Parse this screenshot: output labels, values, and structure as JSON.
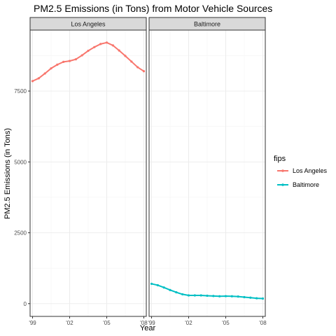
{
  "chart_data": {
    "type": "line",
    "title": "PM2.5 Emissions (in Tons) from Motor Vehicle Sources",
    "xlabel": "Year",
    "ylabel": "PM2.5 Emissions (in Tons)",
    "x_ticks": [
      {
        "value": 1999,
        "label": "'99"
      },
      {
        "value": 2002,
        "label": "'02"
      },
      {
        "value": 2005,
        "label": "'05"
      },
      {
        "value": 2008,
        "label": "'08"
      }
    ],
    "y_ticks": [
      0,
      2500,
      5000,
      7500
    ],
    "xlim": [
      1998.8,
      2008.2
    ],
    "ylim": [
      -450,
      9650
    ],
    "grid": true,
    "legend": {
      "title": "fips",
      "position": "right",
      "entries": [
        {
          "label": "Los Angeles",
          "color": "#F8766D"
        },
        {
          "label": "Baltimore",
          "color": "#00BFC4"
        }
      ]
    },
    "facets": [
      {
        "name": "Los Angeles",
        "color": "#F8766D",
        "x": [
          1999,
          1999.5,
          2000,
          2000.5,
          2001,
          2001.5,
          2002,
          2002.5,
          2003,
          2003.5,
          2004,
          2004.5,
          2005,
          2005.5,
          2006,
          2006.5,
          2007,
          2007.5,
          2008
        ],
        "y": [
          7850,
          7950,
          8120,
          8300,
          8430,
          8530,
          8560,
          8620,
          8760,
          8920,
          9050,
          9160,
          9210,
          9110,
          8930,
          8740,
          8540,
          8340,
          8200
        ]
      },
      {
        "name": "Baltimore",
        "color": "#00BFC4",
        "x": [
          1999,
          1999.5,
          2000,
          2000.5,
          2001,
          2001.5,
          2002,
          2002.5,
          2003,
          2003.5,
          2004,
          2004.5,
          2005,
          2005.5,
          2006,
          2006.5,
          2007,
          2007.5,
          2008
        ],
        "y": [
          700,
          650,
          570,
          480,
          400,
          330,
          290,
          290,
          290,
          280,
          270,
          260,
          265,
          260,
          250,
          230,
          210,
          190,
          180
        ]
      }
    ]
  }
}
